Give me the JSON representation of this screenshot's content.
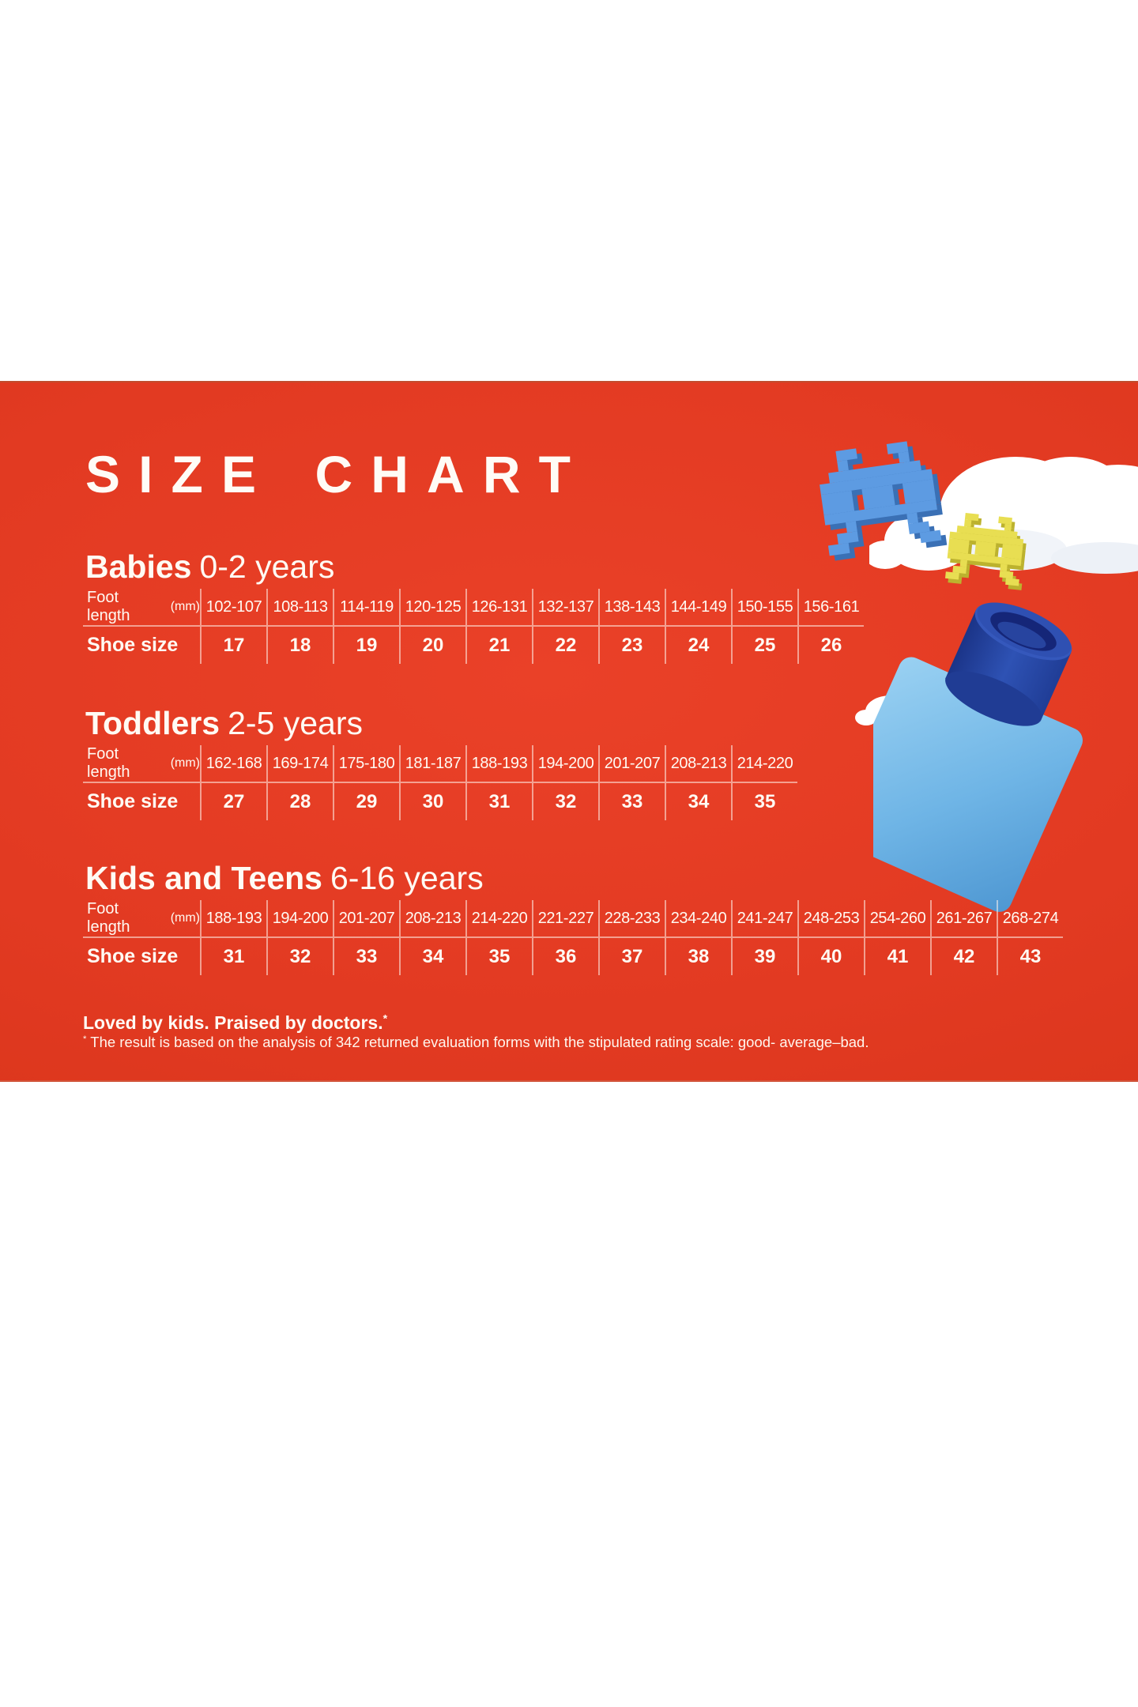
{
  "title": "SIZE CHART",
  "sections": [
    {
      "heading_bold": "Babies",
      "heading_light": "0-2 years",
      "row1_label": "Foot length",
      "row1_unit": "(mm)",
      "row2_label": "Shoe size",
      "foot_lengths": [
        "102-107",
        "108-113",
        "114-119",
        "120-125",
        "126-131",
        "132-137",
        "138-143",
        "144-149",
        "150-155",
        "156-161"
      ],
      "shoe_sizes": [
        "17",
        "18",
        "19",
        "20",
        "21",
        "22",
        "23",
        "24",
        "25",
        "26"
      ]
    },
    {
      "heading_bold": "Toddlers",
      "heading_light": "2-5 years",
      "row1_label": "Foot length",
      "row1_unit": "(mm)",
      "row2_label": "Shoe size",
      "foot_lengths": [
        "162-168",
        "169-174",
        "175-180",
        "181-187",
        "188-193",
        "194-200",
        "201-207",
        "208-213",
        "214-220"
      ],
      "shoe_sizes": [
        "27",
        "28",
        "29",
        "30",
        "31",
        "32",
        "33",
        "34",
        "35"
      ]
    },
    {
      "heading_bold": "Kids and Teens",
      "heading_light": "6-16 years",
      "row1_label": "Foot length",
      "row1_unit": "(mm)",
      "row2_label": "Shoe size",
      "foot_lengths": [
        "188-193",
        "194-200",
        "201-207",
        "208-213",
        "214-220",
        "221-227",
        "228-233",
        "234-240",
        "241-247",
        "248-253",
        "254-260",
        "261-267",
        "268-274"
      ],
      "shoe_sizes": [
        "31",
        "32",
        "33",
        "34",
        "35",
        "36",
        "37",
        "38",
        "39",
        "40",
        "41",
        "42",
        "43"
      ]
    }
  ],
  "footer": {
    "claim": "Loved by kids. Praised by doctors.",
    "claim_mark": "*",
    "note_mark": "*",
    "note": "The result is based on the analysis of 342 returned evaluation forms with the stipulated rating scale: good- average–bad."
  },
  "colors": {
    "background_red": "#E23A22",
    "text_white": "#FFFAF3",
    "divider_white": "rgba(255,243,235,0.55)",
    "toy_piece_blue": "#5D9BE2",
    "toy_piece_blue_shade": "#3A70B5",
    "toy_piece_yellow": "#E8DE52",
    "toy_piece_yellow_shade": "#BCB22E",
    "cloud_white": "#FFFFFF",
    "cloud_shade": "#E7EBF2",
    "stud_dark_blue": "#24439F",
    "cube_light_blue": "#6FB5E6"
  },
  "icons": [
    "cloud-icon",
    "toy-piece-blue-icon",
    "toy-piece-yellow-icon",
    "small-cloud-icon",
    "duplo-brick-icon"
  ],
  "chart_data": [
    {
      "type": "table",
      "title": "Babies 0-2 years",
      "columns": [
        "102-107",
        "108-113",
        "114-119",
        "120-125",
        "126-131",
        "132-137",
        "138-143",
        "144-149",
        "150-155",
        "156-161"
      ],
      "row_labels": [
        "Foot length (mm)",
        "Shoe size"
      ],
      "rows": [
        [
          17,
          18,
          19,
          20,
          21,
          22,
          23,
          24,
          25,
          26
        ]
      ]
    },
    {
      "type": "table",
      "title": "Toddlers 2-5 years",
      "columns": [
        "162-168",
        "169-174",
        "175-180",
        "181-187",
        "188-193",
        "194-200",
        "201-207",
        "208-213",
        "214-220"
      ],
      "row_labels": [
        "Foot length (mm)",
        "Shoe size"
      ],
      "rows": [
        [
          27,
          28,
          29,
          30,
          31,
          32,
          33,
          34,
          35
        ]
      ]
    },
    {
      "type": "table",
      "title": "Kids and Teens 6-16 years",
      "columns": [
        "188-193",
        "194-200",
        "201-207",
        "208-213",
        "214-220",
        "221-227",
        "228-233",
        "234-240",
        "241-247",
        "248-253",
        "254-260",
        "261-267",
        "268-274"
      ],
      "row_labels": [
        "Foot length (mm)",
        "Shoe size"
      ],
      "rows": [
        [
          31,
          32,
          33,
          34,
          35,
          36,
          37,
          38,
          39,
          40,
          41,
          42,
          43
        ]
      ]
    }
  ]
}
